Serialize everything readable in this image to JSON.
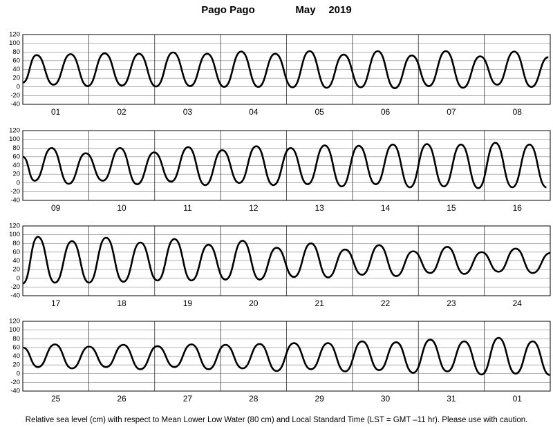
{
  "header": {
    "station": "Pago Pago",
    "month": "May",
    "year": "2019"
  },
  "chart_data": [
    {
      "type": "line",
      "color": "#000000",
      "xlim": [
        0,
        192
      ],
      "ylim": [
        -40,
        120
      ],
      "grid": true,
      "yticks": [
        -40,
        -20,
        0,
        20,
        40,
        60,
        80,
        100,
        120
      ],
      "xticks": [
        {
          "value": 12,
          "label": "01"
        },
        {
          "value": 36,
          "label": "02"
        },
        {
          "value": 60,
          "label": "03"
        },
        {
          "value": 84,
          "label": "04"
        },
        {
          "value": 108,
          "label": "05"
        },
        {
          "value": 132,
          "label": "06"
        },
        {
          "value": 156,
          "label": "07"
        },
        {
          "value": 180,
          "label": "08"
        }
      ],
      "x": [
        0,
        5.0,
        11.2,
        17.4,
        23.6,
        29.8,
        36.1,
        42.3,
        48.5,
        54.7,
        60.9,
        67.1,
        73.3,
        79.5,
        85.7,
        91.9,
        98.2,
        104.4,
        110.6,
        116.8,
        123.0,
        129.2,
        135.4,
        141.6,
        147.8,
        154.0,
        160.2,
        166.5,
        172.7,
        178.9,
        185.1,
        191.3
      ],
      "values": [
        10,
        73,
        5,
        75,
        2,
        77,
        3,
        76,
        1,
        79,
        2,
        76,
        0,
        81,
        0,
        76,
        -1,
        82,
        -2,
        74,
        -1,
        82,
        -3,
        72,
        2,
        82,
        -2,
        70,
        5,
        81,
        0,
        68
      ]
    },
    {
      "type": "line",
      "color": "#000000",
      "xlim": [
        0,
        192
      ],
      "ylim": [
        -40,
        120
      ],
      "grid": true,
      "yticks": [
        -40,
        -20,
        0,
        20,
        40,
        60,
        80,
        100,
        120
      ],
      "xticks": [
        {
          "value": 12,
          "label": "09"
        },
        {
          "value": 36,
          "label": "10"
        },
        {
          "value": 60,
          "label": "11"
        },
        {
          "value": 84,
          "label": "12"
        },
        {
          "value": 108,
          "label": "13"
        },
        {
          "value": 132,
          "label": "14"
        },
        {
          "value": 156,
          "label": "15"
        },
        {
          "value": 180,
          "label": "16"
        }
      ],
      "x": [
        0,
        4.3,
        10.5,
        16.7,
        22.9,
        29.1,
        35.4,
        41.6,
        47.8,
        54.0,
        60.2,
        66.4,
        72.6,
        78.8,
        85.0,
        91.2,
        97.5,
        103.7,
        109.9,
        116.1,
        122.3,
        128.5,
        134.7,
        140.9,
        147.1,
        153.3,
        159.5,
        165.8,
        172.0,
        178.2,
        184.4,
        190.6
      ],
      "values": [
        60,
        5,
        80,
        -2,
        68,
        5,
        80,
        -3,
        70,
        3,
        82,
        -5,
        75,
        0,
        84,
        -5,
        80,
        -3,
        86,
        -8,
        85,
        -3,
        88,
        -10,
        89,
        -8,
        88,
        -12,
        92,
        -10,
        88,
        -10
      ]
    },
    {
      "type": "line",
      "color": "#000000",
      "xlim": [
        0,
        192
      ],
      "ylim": [
        -40,
        120
      ],
      "grid": true,
      "yticks": [
        -40,
        -20,
        0,
        20,
        40,
        60,
        80,
        100,
        120
      ],
      "xticks": [
        {
          "value": 12,
          "label": "17"
        },
        {
          "value": 36,
          "label": "18"
        },
        {
          "value": 60,
          "label": "19"
        },
        {
          "value": 84,
          "label": "20"
        },
        {
          "value": 108,
          "label": "21"
        },
        {
          "value": 132,
          "label": "22"
        },
        {
          "value": 156,
          "label": "23"
        },
        {
          "value": 180,
          "label": "24"
        }
      ],
      "x": [
        0,
        5.5,
        11.7,
        17.9,
        24.1,
        30.3,
        36.6,
        42.8,
        49.0,
        55.2,
        61.4,
        67.6,
        73.8,
        80.0,
        86.2,
        92.4,
        98.7,
        104.9,
        111.1,
        117.3,
        123.5,
        129.7,
        135.9,
        142.1,
        148.3,
        154.5,
        160.7,
        167.0,
        173.2,
        179.4,
        185.6,
        192
      ],
      "values": [
        -12,
        95,
        -10,
        85,
        -10,
        93,
        -8,
        82,
        -5,
        90,
        -5,
        77,
        -3,
        86,
        -3,
        70,
        3,
        80,
        2,
        66,
        8,
        76,
        5,
        62,
        12,
        72,
        10,
        60,
        15,
        68,
        12,
        58
      ]
    },
    {
      "type": "line",
      "color": "#000000",
      "xlim": [
        0,
        192
      ],
      "ylim": [
        -40,
        120
      ],
      "grid": true,
      "yticks": [
        -40,
        -20,
        0,
        20,
        40,
        60,
        80,
        100,
        120
      ],
      "xticks": [
        {
          "value": 12,
          "label": "25"
        },
        {
          "value": 36,
          "label": "26"
        },
        {
          "value": 60,
          "label": "27"
        },
        {
          "value": 84,
          "label": "28"
        },
        {
          "value": 108,
          "label": "29"
        },
        {
          "value": 132,
          "label": "30"
        },
        {
          "value": 156,
          "label": "31"
        },
        {
          "value": 180,
          "label": "01"
        }
      ],
      "x": [
        0,
        5.5,
        11.7,
        17.9,
        24.1,
        30.3,
        36.6,
        42.8,
        49.0,
        55.2,
        61.4,
        67.6,
        73.8,
        80.0,
        86.2,
        92.4,
        98.7,
        104.9,
        111.1,
        117.3,
        123.5,
        129.7,
        135.9,
        142.1,
        148.3,
        154.5,
        160.7,
        167.0,
        173.2,
        179.4,
        185.6,
        191.8
      ],
      "values": [
        60,
        15,
        67,
        12,
        62,
        15,
        66,
        10,
        63,
        15,
        67,
        10,
        66,
        12,
        68,
        6,
        70,
        10,
        70,
        5,
        74,
        8,
        72,
        2,
        78,
        5,
        74,
        -2,
        82,
        0,
        74,
        -3
      ]
    }
  ],
  "footer": "Relative sea level (cm) with respect to Mean Lower Low Water (80 cm) and Local Standard Time (LST = GMT –11 hr). Please use with caution."
}
